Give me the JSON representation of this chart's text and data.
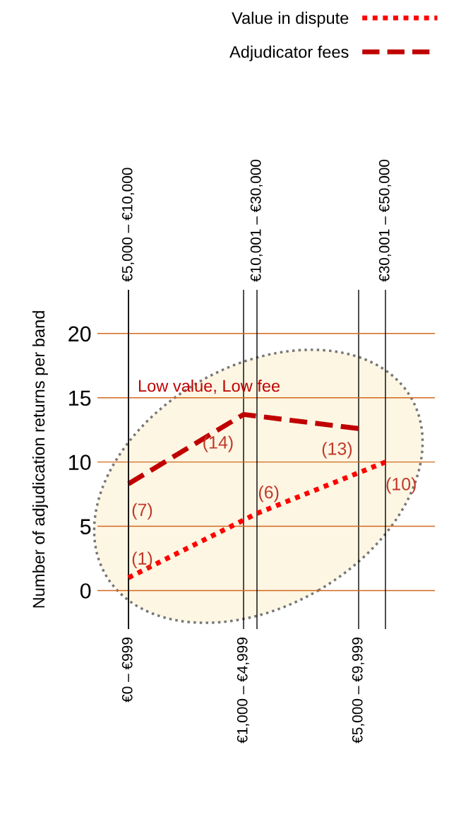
{
  "chart_data": [
    {
      "type": "line",
      "ylabel": "Number of adjudication returns per band",
      "categories": [
        "€0 – €999",
        "€1,000 – €4,999",
        "€5,000 – €9,999"
      ],
      "ylim": [
        -3.0,
        23.4
      ],
      "yticks": [
        0,
        5,
        10,
        15,
        20
      ],
      "grid": true,
      "legend": "top right",
      "series": [
        {
          "name": "Adjudicator fees",
          "color": "#c00000",
          "line_style": "dashed",
          "values": [
            8.3,
            13.7,
            12.6
          ]
        }
      ],
      "annotations": [
        "Low value, Low fee",
        {
          "text": "(7)",
          "x": "€0 – €999",
          "y": 8.3
        },
        {
          "text": "(14)",
          "x": "€1,000 – €4,999",
          "y": 13.7
        },
        {
          "text": "(13)",
          "x": "€5,000 – €9,999",
          "y": 12.6
        }
      ]
    },
    {
      "type": "line",
      "categories": [
        "€5,000 – €10,000",
        "€10,001 – €30,000",
        "€30,001 – €50,000"
      ],
      "ylim": [
        -3.0,
        23.4
      ],
      "yticks": [
        0,
        5,
        10,
        15,
        20
      ],
      "tick_labels": "x",
      "grid": "x",
      "legend": "top right",
      "series": [
        {
          "name": "Value in dispute",
          "color": "#ff0000",
          "line_style": "dotted",
          "values": [
            1,
            6,
            10
          ]
        }
      ],
      "annotations": [
        {
          "text": "(1)",
          "x": "€5,000 – €10,000",
          "y": 1
        },
        {
          "text": "(6)",
          "x": "€10,001 – €30,000",
          "y": 6
        },
        {
          "text": "(10)",
          "x": "€30,001 – €50,000",
          "y": 10
        }
      ]
    }
  ]
}
